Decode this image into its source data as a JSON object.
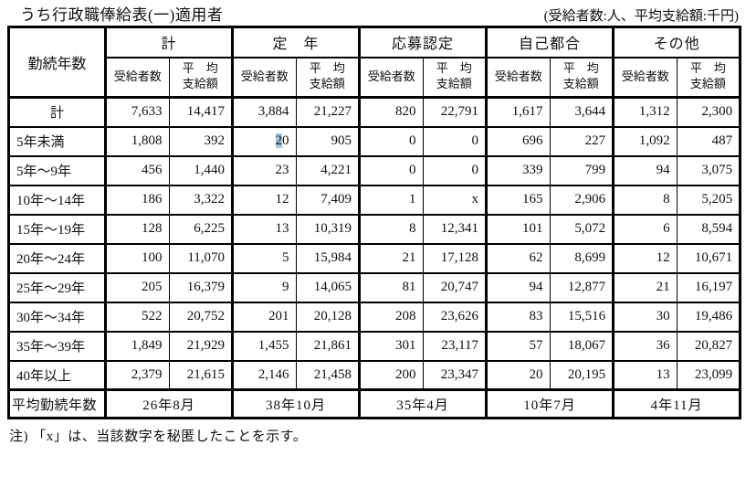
{
  "title": "うち行政職俸給表(一)適用者",
  "unit_note": "(受給者数:人、平均支給額:千円)",
  "footnote": "注) 「x」は、当該数字を秘匿したことを示す。",
  "table": {
    "row_header": "勤続年数",
    "groups": [
      {
        "label": "計"
      },
      {
        "label": "定　年"
      },
      {
        "label": "応募認定"
      },
      {
        "label": "自己都合"
      },
      {
        "label": "その他"
      }
    ],
    "sub_headers": {
      "recipients": "受給者数",
      "avg_line1": "平　均",
      "avg_line2": "支給額"
    },
    "rows": [
      {
        "label": "計",
        "center": true,
        "values": [
          "7,633",
          "14,417",
          "3,884",
          "21,227",
          "820",
          "22,791",
          "1,617",
          "3,644",
          "1,312",
          "2,300"
        ]
      },
      {
        "label": "5年未満",
        "values": [
          "1,808",
          "392",
          "20",
          "905",
          "0",
          "0",
          "696",
          "227",
          "1,092",
          "487"
        ]
      },
      {
        "label": "5年〜9年",
        "values": [
          "456",
          "1,440",
          "23",
          "4,221",
          "0",
          "0",
          "339",
          "799",
          "94",
          "3,075"
        ]
      },
      {
        "label": "10年〜14年",
        "values": [
          "186",
          "3,322",
          "12",
          "7,409",
          "1",
          "x",
          "165",
          "2,906",
          "8",
          "5,205"
        ]
      },
      {
        "label": "15年〜19年",
        "values": [
          "128",
          "6,225",
          "13",
          "10,319",
          "8",
          "12,341",
          "101",
          "5,072",
          "6",
          "8,594"
        ]
      },
      {
        "label": "20年〜24年",
        "values": [
          "100",
          "11,070",
          "5",
          "15,984",
          "21",
          "17,128",
          "62",
          "8,699",
          "12",
          "10,671"
        ]
      },
      {
        "label": "25年〜29年",
        "values": [
          "205",
          "16,379",
          "9",
          "14,065",
          "81",
          "20,747",
          "94",
          "12,877",
          "21",
          "16,197"
        ]
      },
      {
        "label": "30年〜34年",
        "values": [
          "522",
          "20,752",
          "201",
          "20,128",
          "208",
          "23,626",
          "83",
          "15,516",
          "30",
          "19,486"
        ]
      },
      {
        "label": "35年〜39年",
        "values": [
          "1,849",
          "21,929",
          "1,455",
          "21,861",
          "301",
          "23,117",
          "57",
          "18,067",
          "36",
          "20,827"
        ]
      },
      {
        "label": "40年以上",
        "values": [
          "2,379",
          "21,615",
          "2,146",
          "21,458",
          "200",
          "23,347",
          "20",
          "20,195",
          "13",
          "23,099"
        ]
      }
    ],
    "selection": {
      "row_index": 1,
      "col_index": 2,
      "selected_text": "2",
      "rest_text": "0",
      "highlight_color": "#a5c6e3"
    },
    "footer": {
      "label": "平均勤続年数",
      "values": [
        "26年8月",
        "38年10月",
        "35年4月",
        "10年7月",
        "4年11月"
      ]
    }
  }
}
